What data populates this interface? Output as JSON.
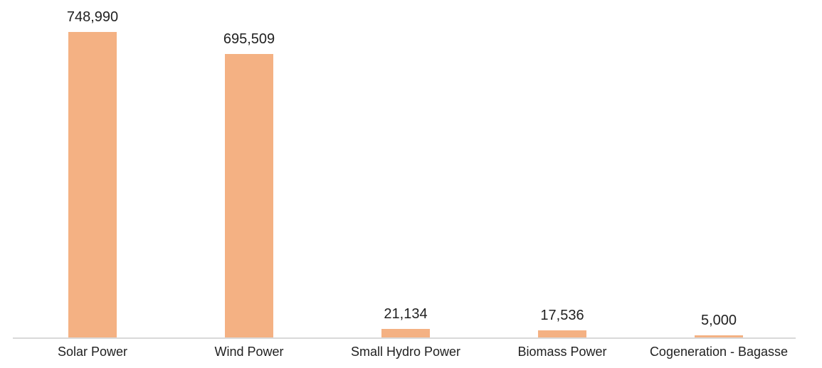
{
  "chart_data": {
    "type": "bar",
    "categories": [
      "Solar Power",
      "Wind Power",
      "Small Hydro Power",
      "Biomass Power",
      "Cogeneration - Bagasse"
    ],
    "values": [
      748990,
      695509,
      21134,
      17536,
      5000
    ],
    "value_labels": [
      "748,990",
      "695,509",
      "21,134",
      "17,536",
      "5,000"
    ],
    "title": "",
    "xlabel": "",
    "ylabel": "",
    "ylim": [
      0,
      748990
    ],
    "grid": false,
    "legend": false,
    "y_axis_visible": false,
    "data_labels_visible": true,
    "bar_color": "#F4B183",
    "axis_line_color": "#D9D9D9",
    "label_color": "#212121"
  }
}
